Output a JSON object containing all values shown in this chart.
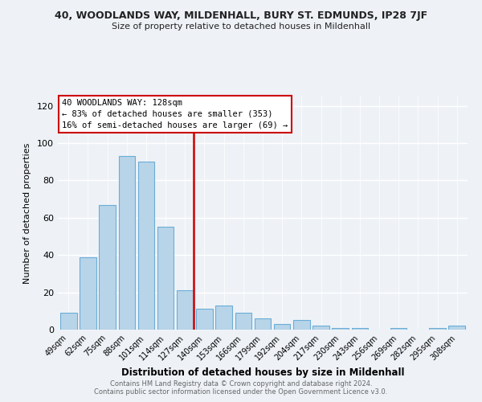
{
  "title1": "40, WOODLANDS WAY, MILDENHALL, BURY ST. EDMUNDS, IP28 7JF",
  "title2": "Size of property relative to detached houses in Mildenhall",
  "xlabel": "Distribution of detached houses by size in Mildenhall",
  "ylabel": "Number of detached properties",
  "categories": [
    "49sqm",
    "62sqm",
    "75sqm",
    "88sqm",
    "101sqm",
    "114sqm",
    "127sqm",
    "140sqm",
    "153sqm",
    "166sqm",
    "179sqm",
    "192sqm",
    "204sqm",
    "217sqm",
    "230sqm",
    "243sqm",
    "256sqm",
    "269sqm",
    "282sqm",
    "295sqm",
    "308sqm"
  ],
  "values": [
    9,
    39,
    67,
    93,
    90,
    55,
    21,
    11,
    13,
    9,
    6,
    3,
    5,
    2,
    1,
    1,
    0,
    1,
    0,
    1,
    2
  ],
  "bar_color": "#b8d4e8",
  "bar_edge_color": "#6aaed6",
  "highlight_line_color": "#cc0000",
  "box_text_line1": "40 WOODLANDS WAY: 128sqm",
  "box_text_line2": "← 83% of detached houses are smaller (353)",
  "box_text_line3": "16% of semi-detached houses are larger (69) →",
  "box_color": "white",
  "box_edge_color": "#cc0000",
  "ylim": [
    0,
    125
  ],
  "yticks": [
    0,
    20,
    40,
    60,
    80,
    100,
    120
  ],
  "footer1": "Contains HM Land Registry data © Crown copyright and database right 2024.",
  "footer2": "Contains public sector information licensed under the Open Government Licence v3.0.",
  "bg_color": "#eef2f7"
}
